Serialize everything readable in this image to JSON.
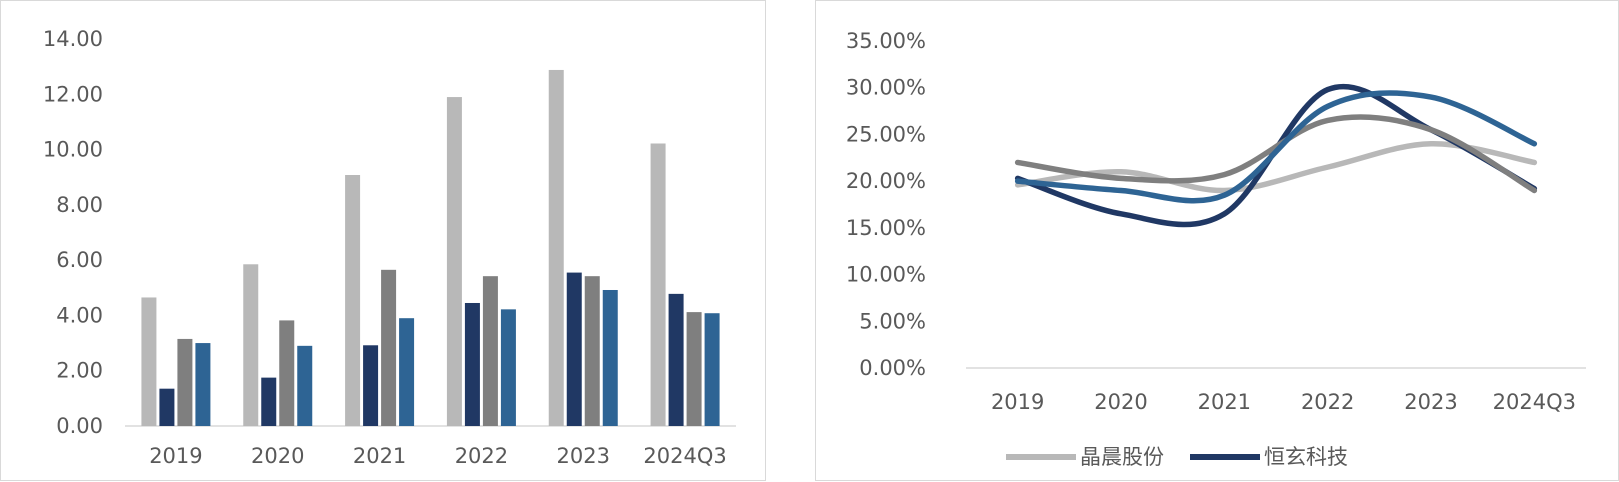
{
  "colors": {
    "light_gray": "#b8b8b8",
    "navy": "#203864",
    "dark_gray": "#7f7f7f",
    "steel_blue": "#2e6494",
    "axis": "#d9d9d9",
    "text": "#595959"
  },
  "chart_data": [
    {
      "type": "bar",
      "categories": [
        "2019",
        "2020",
        "2021",
        "2022",
        "2023",
        "2024Q3"
      ],
      "series": [
        {
          "color": "#b8b8b8",
          "values": [
            4.65,
            5.85,
            9.08,
            11.9,
            12.88,
            10.22
          ]
        },
        {
          "color": "#203864",
          "values": [
            1.35,
            1.75,
            2.92,
            4.45,
            5.55,
            4.78
          ]
        },
        {
          "color": "#7f7f7f",
          "values": [
            3.15,
            3.82,
            5.65,
            5.42,
            5.42,
            4.12
          ]
        },
        {
          "color": "#2e6494",
          "values": [
            3.0,
            2.9,
            3.9,
            4.22,
            4.92,
            4.08
          ]
        }
      ],
      "ylim": [
        0,
        14
      ],
      "yticks": [
        "0.00",
        "2.00",
        "4.00",
        "6.00",
        "8.00",
        "10.00",
        "12.00",
        "14.00"
      ],
      "grid": false
    },
    {
      "type": "line",
      "categories": [
        "2019",
        "2020",
        "2021",
        "2022",
        "2023",
        "2024Q3"
      ],
      "series": [
        {
          "name": "晶晨股份",
          "color": "#b8b8b8",
          "values": [
            0.196,
            0.21,
            0.19,
            0.215,
            0.24,
            0.22
          ]
        },
        {
          "name": "恒玄科技",
          "color": "#203864",
          "values": [
            0.203,
            0.165,
            0.165,
            0.298,
            0.255,
            0.192
          ]
        },
        {
          "color": "#7f7f7f",
          "values": [
            0.22,
            0.203,
            0.207,
            0.265,
            0.255,
            0.19
          ]
        },
        {
          "color": "#2e6494",
          "values": [
            0.2,
            0.19,
            0.185,
            0.28,
            0.29,
            0.24
          ]
        }
      ],
      "ylim": [
        0,
        0.35
      ],
      "yticks": [
        "0.00%",
        "5.00%",
        "10.00%",
        "15.00%",
        "20.00%",
        "25.00%",
        "30.00%",
        "35.00%"
      ],
      "legend": "bottom",
      "grid": false
    }
  ]
}
